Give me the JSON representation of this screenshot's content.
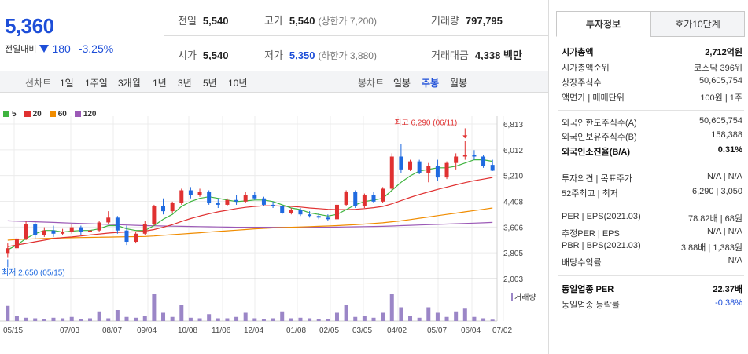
{
  "quote": {
    "price": "5,360",
    "change_label": "전일대비",
    "change_abs": "180",
    "change_pct": "-3.25%",
    "prev_close_label": "전일",
    "prev_close": "5,540",
    "high_label": "고가",
    "high": "5,540",
    "upper_limit": "(상한가 7,200)",
    "volume_label": "거래량",
    "volume": "797,795",
    "open_label": "시가",
    "open": "5,540",
    "low_label": "저가",
    "low": "5,350",
    "lower_limit": "(하한가 3,880)",
    "amount_label": "거래대금",
    "amount": "4,338 백만"
  },
  "period_bar": {
    "line_chart_label": "선차트",
    "periods": [
      "1일",
      "1주일",
      "3개월",
      "1년",
      "3년",
      "5년",
      "10년"
    ],
    "candle_label": "봉차트",
    "candle_periods": [
      "일봉",
      "주봉",
      "월봉"
    ],
    "candle_active": "주봉"
  },
  "legend": [
    "5",
    "20",
    "60",
    "120"
  ],
  "chart_data": {
    "type": "candlestick",
    "title": "",
    "y_ticks": [
      "6,813",
      "6,012",
      "5,210",
      "4,408",
      "3,606",
      "2,805",
      "2,003"
    ],
    "x_ticks": [
      "05/15",
      "07/03",
      "08/07",
      "09/04",
      "10/08",
      "11/06",
      "12/04",
      "01/08",
      "02/05",
      "03/05",
      "04/02",
      "05/07",
      "06/04",
      "07/02"
    ],
    "ylim": [
      2003,
      6813
    ],
    "annotation_high": "최고 6,290 (06/11)",
    "annotation_low": "최저 2,650 (05/15)",
    "volume_label": "거래량",
    "candles": [
      [
        2800,
        3100,
        2650,
        2950
      ],
      [
        2950,
        3300,
        2900,
        3250
      ],
      [
        3250,
        3800,
        3200,
        3700
      ],
      [
        3700,
        3750,
        3250,
        3350
      ],
      [
        3350,
        3600,
        3300,
        3500
      ],
      [
        3500,
        3650,
        3300,
        3400
      ],
      [
        3400,
        3550,
        3350,
        3450
      ],
      [
        3450,
        3700,
        3400,
        3600
      ],
      [
        3600,
        3650,
        3350,
        3450
      ],
      [
        3450,
        3600,
        3400,
        3500
      ],
      [
        3500,
        3800,
        3450,
        3750
      ],
      [
        3750,
        4100,
        3700,
        3900
      ],
      [
        3900,
        3950,
        3400,
        3500
      ],
      [
        3500,
        3650,
        3050,
        3150
      ],
      [
        3150,
        3450,
        3100,
        3400
      ],
      [
        3400,
        3800,
        3350,
        3700
      ],
      [
        3700,
        4300,
        3650,
        4250
      ],
      [
        4250,
        4500,
        4000,
        4100
      ],
      [
        4100,
        4400,
        4050,
        4350
      ],
      [
        4350,
        4800,
        4300,
        4750
      ],
      [
        4750,
        4850,
        4500,
        4600
      ],
      [
        4600,
        4800,
        4550,
        4700
      ],
      [
        4700,
        4750,
        4300,
        4350
      ],
      [
        4350,
        4500,
        4200,
        4300
      ],
      [
        4300,
        4500,
        4250,
        4450
      ],
      [
        4450,
        4600,
        4300,
        4400
      ],
      [
        4400,
        4700,
        4350,
        4600
      ],
      [
        4600,
        4700,
        4450,
        4500
      ],
      [
        4500,
        4550,
        4250,
        4300
      ],
      [
        4300,
        4400,
        4200,
        4250
      ],
      [
        4250,
        4300,
        4000,
        4050
      ],
      [
        4050,
        4200,
        4000,
        4150
      ],
      [
        4150,
        4200,
        3950,
        4000
      ],
      [
        4000,
        4100,
        3900,
        3950
      ],
      [
        3950,
        4050,
        3850,
        3900
      ],
      [
        3900,
        4000,
        3800,
        3850
      ],
      [
        3850,
        4350,
        3800,
        4300
      ],
      [
        4300,
        4750,
        4250,
        4700
      ],
      [
        4700,
        4750,
        4200,
        4250
      ],
      [
        4250,
        4650,
        4200,
        4600
      ],
      [
        4600,
        4700,
        4350,
        4400
      ],
      [
        4400,
        4850,
        4350,
        4800
      ],
      [
        4800,
        5900,
        4750,
        5800
      ],
      [
        5800,
        6200,
        5300,
        5400
      ],
      [
        5400,
        5700,
        5350,
        5650
      ],
      [
        5650,
        5700,
        5250,
        5300
      ],
      [
        5300,
        5600,
        5000,
        5500
      ],
      [
        5500,
        5700,
        5050,
        5150
      ],
      [
        5150,
        5650,
        5100,
        5600
      ],
      [
        5600,
        5900,
        5400,
        5800
      ],
      [
        5800,
        6290,
        5700,
        5850
      ],
      [
        5850,
        6000,
        5700,
        5800
      ],
      [
        5800,
        5850,
        5450,
        5500
      ],
      [
        5540,
        5700,
        5350,
        5360
      ]
    ],
    "volumes": [
      0.55,
      0.2,
      0.12,
      0.1,
      0.08,
      0.12,
      0.1,
      0.15,
      0.08,
      0.1,
      0.35,
      0.1,
      0.4,
      0.15,
      0.12,
      0.2,
      1.0,
      0.3,
      0.15,
      0.6,
      0.12,
      0.1,
      0.25,
      0.1,
      0.1,
      0.15,
      0.3,
      0.1,
      0.08,
      0.1,
      0.35,
      0.1,
      0.12,
      0.1,
      0.08,
      0.08,
      0.3,
      0.6,
      0.15,
      0.2,
      0.12,
      0.3,
      1.0,
      0.5,
      0.2,
      0.12,
      0.5,
      0.3,
      0.15,
      0.35,
      0.45,
      0.15,
      0.1,
      0.05
    ],
    "ma5": [
      2900,
      3050,
      3250,
      3400,
      3500,
      3500,
      3450,
      3480,
      3500,
      3500,
      3550,
      3650,
      3650,
      3550,
      3500,
      3500,
      3650,
      3850,
      4000,
      4250,
      4400,
      4500,
      4550,
      4500,
      4450,
      4400,
      4420,
      4450,
      4450,
      4400,
      4300,
      4200,
      4150,
      4050,
      4000,
      3950,
      4000,
      4150,
      4300,
      4400,
      4450,
      4500,
      4750,
      5000,
      5200,
      5350,
      5400,
      5450,
      5450,
      5500,
      5600,
      5700,
      5700,
      5650
    ],
    "ma20": [
      3000,
      3050,
      3100,
      3150,
      3200,
      3250,
      3280,
      3300,
      3330,
      3360,
      3390,
      3420,
      3440,
      3450,
      3460,
      3480,
      3530,
      3600,
      3680,
      3780,
      3870,
      3950,
      4020,
      4080,
      4130,
      4180,
      4220,
      4250,
      4270,
      4270,
      4260,
      4250,
      4230,
      4200,
      4180,
      4160,
      4150,
      4150,
      4160,
      4180,
      4210,
      4250,
      4330,
      4430,
      4530,
      4620,
      4700,
      4780,
      4850,
      4920,
      4990,
      5050,
      5100,
      5150
    ],
    "ma60": [
      3200,
      3220,
      3230,
      3240,
      3250,
      3260,
      3270,
      3275,
      3280,
      3285,
      3290,
      3295,
      3300,
      3305,
      3310,
      3315,
      3330,
      3350,
      3370,
      3390,
      3410,
      3430,
      3450,
      3470,
      3490,
      3510,
      3530,
      3550,
      3565,
      3580,
      3590,
      3600,
      3610,
      3620,
      3630,
      3640,
      3650,
      3665,
      3680,
      3700,
      3720,
      3740,
      3770,
      3800,
      3840,
      3880,
      3920,
      3960,
      4000,
      4040,
      4080,
      4120,
      4160,
      4200
    ],
    "ma120": [
      3800,
      3790,
      3780,
      3770,
      3760,
      3750,
      3740,
      3730,
      3720,
      3710,
      3700,
      3690,
      3680,
      3670,
      3660,
      3650,
      3645,
      3640,
      3635,
      3630,
      3625,
      3620,
      3615,
      3610,
      3605,
      3600,
      3600,
      3600,
      3600,
      3600,
      3600,
      3600,
      3600,
      3600,
      3600,
      3600,
      3605,
      3610,
      3615,
      3620,
      3625,
      3630,
      3640,
      3650,
      3660,
      3670,
      3680,
      3690,
      3700,
      3710,
      3720,
      3730,
      3740,
      3750
    ]
  },
  "side": {
    "tabs": [
      "투자정보",
      "호가10단계"
    ],
    "rows": [
      {
        "label": "시가총액",
        "value": "2,712억원"
      },
      {
        "label": "시가총액순위",
        "value": "코스닥 396위"
      },
      {
        "label": "상장주식수",
        "value": "50,605,754"
      },
      {
        "label": "액면가 | 매매단위",
        "value": "100원 | 1주"
      },
      {
        "label": "외국인한도주식수(A)",
        "value": "50,605,754"
      },
      {
        "label": "외국인보유주식수(B)",
        "value": "158,388"
      },
      {
        "label": "외국인소진율(B/A)",
        "value": "0.31%"
      },
      {
        "label": "투자의견 | 목표주가",
        "value": "N/A | N/A"
      },
      {
        "label": "52주최고 | 최저",
        "value": "6,290 | 3,050"
      },
      {
        "label": "PER | EPS(2021.03)",
        "value": "78.82배 | 68원"
      },
      {
        "label": "추정PER | EPS",
        "value": "N/A | N/A"
      },
      {
        "label": "PBR | BPS(2021.03)",
        "value": "3.88배 | 1,383원"
      },
      {
        "label": "배당수익률",
        "value": "N/A"
      },
      {
        "label": "동일업종 PER",
        "value": "22.37배"
      },
      {
        "label": "동일업종 등락률",
        "value": "-0.38%"
      }
    ]
  },
  "colors": {
    "up": "#e03131",
    "down": "#1f6ae0",
    "ma5": "#3fb43f",
    "ma20": "#e03131",
    "ma60": "#f08c00",
    "ma120": "#9b59b6"
  }
}
